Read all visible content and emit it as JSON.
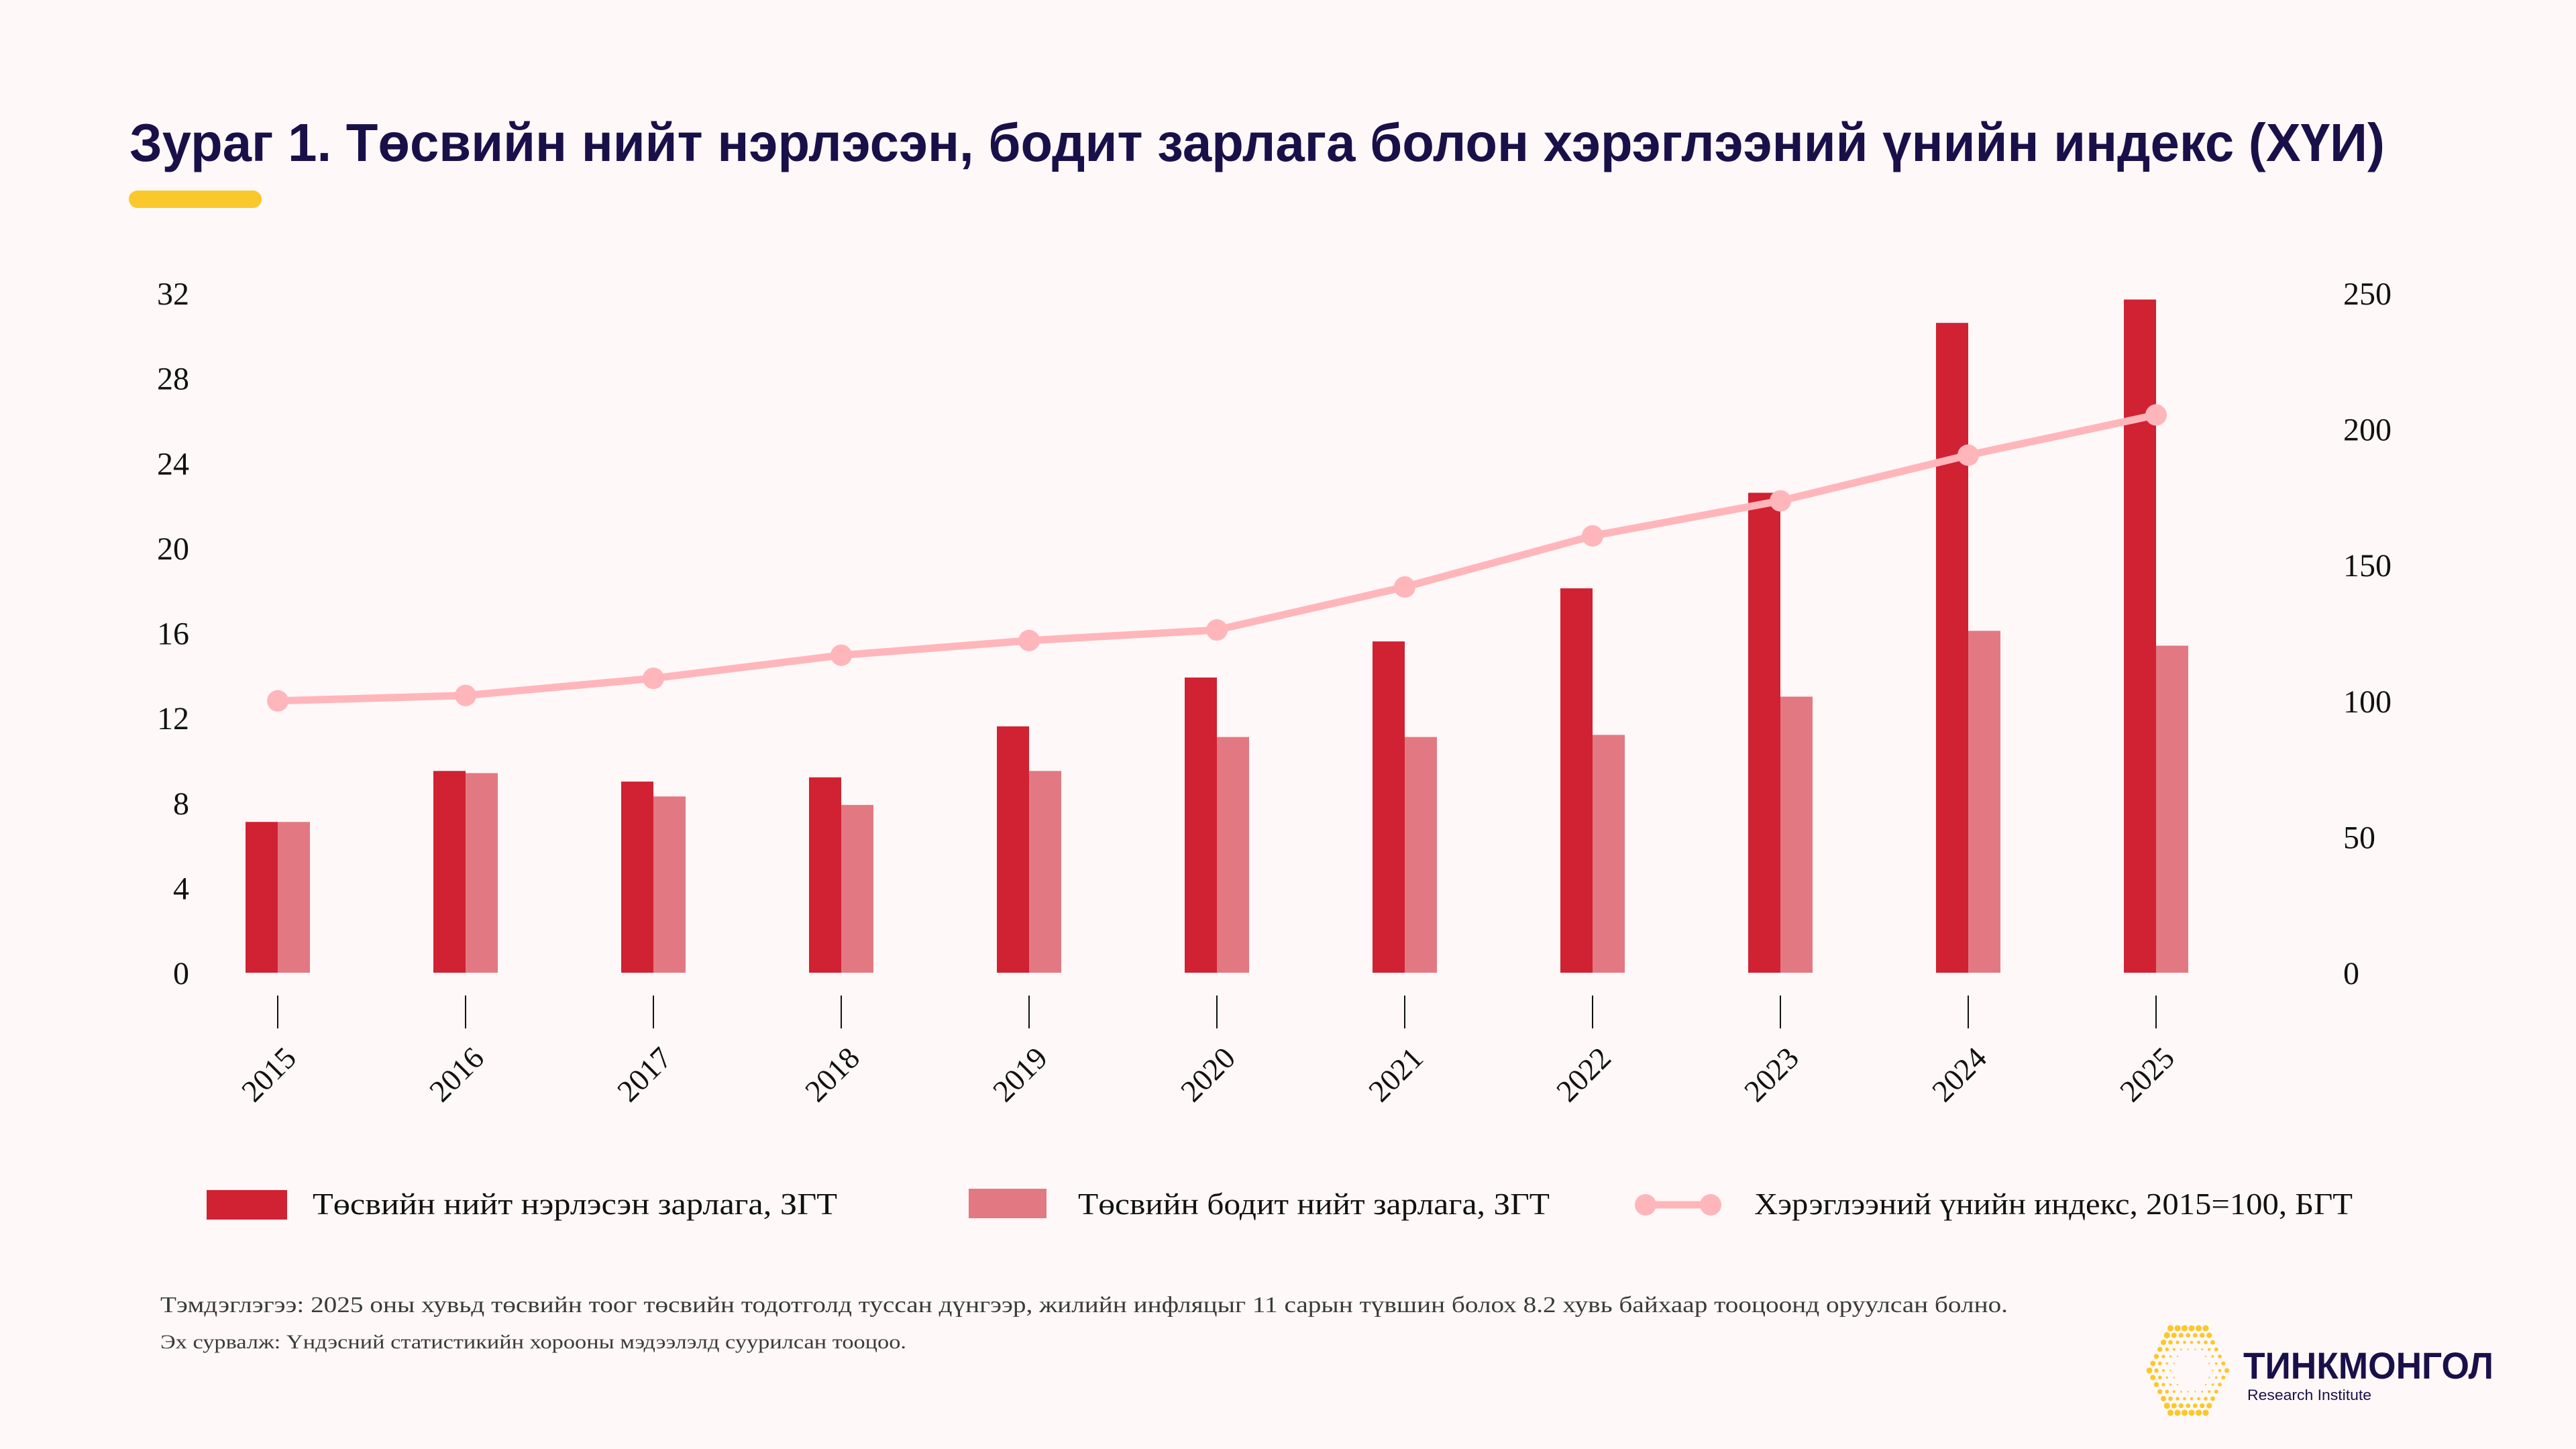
{
  "header": {
    "title": "Зураг 1. Төсвийн нийт нэрлэсэн, бодит зарлага болон хэрэглээний үнийн индекс (ХҮИ)",
    "accent_color": "#FBC82B"
  },
  "chart_data": {
    "type": "bar",
    "title": "Зураг 1. Төсвийн нийт нэрлэсэн, бодит зарлага болон хэрэглээний үнийн индекс (ХҮИ)",
    "xlabel": "",
    "ylabel": "",
    "categories": [
      "2015",
      "2016",
      "2017",
      "2018",
      "2019",
      "2020",
      "2021",
      "2022",
      "2023",
      "2024",
      "2025"
    ],
    "series": [
      {
        "name": "Төсвийн нийт нэрлэсэн зарлага, ЗГТ",
        "type": "bar",
        "axis": "left",
        "color": "#D02232",
        "values": [
          7.1,
          9.5,
          9.0,
          9.2,
          11.6,
          13.9,
          15.6,
          18.1,
          22.6,
          30.6,
          31.7
        ]
      },
      {
        "name": "Төсвийн бодит нийт зарлага, ЗГТ",
        "type": "bar",
        "axis": "left",
        "color": "#E27982",
        "values": [
          7.1,
          9.4,
          8.3,
          7.9,
          9.5,
          11.1,
          11.1,
          11.2,
          13.0,
          16.1,
          15.4
        ]
      },
      {
        "name": "Хэрэглээний үнийн индекс, 2015=100, БГТ",
        "type": "line",
        "axis": "right",
        "color": "#FFB6BB",
        "values": [
          100.0,
          102.0,
          108.3,
          116.8,
          122.2,
          126.1,
          141.9,
          160.7,
          173.6,
          190.4,
          205.2
        ]
      }
    ],
    "y_left": {
      "ylim": [
        0,
        32
      ],
      "ticks": [
        "0",
        "4",
        "8",
        "12",
        "16",
        "20",
        "24",
        "28",
        "32"
      ]
    },
    "y_right": {
      "ylim": [
        0,
        250
      ],
      "ticks": [
        "0",
        "50",
        "100",
        "150",
        "200",
        "250"
      ]
    },
    "grid": false,
    "legend_position": "bottom"
  },
  "footnotes": {
    "note": "Тэмдэглэгээ: 2025 оны хувьд төсвийн тоог төсвийн тодотголд туссан дүнгээр, жилийн инфляцыг 11 сарын түвшин болох 8.2 хувь байхаар тооцоонд оруулсан болно.",
    "source": "Эх сурвалж: Үндэсний статистикийн хорооны мэдээлэлд суурилсан тооцоо."
  },
  "logo": {
    "name": "ТИНКМОНГОЛ",
    "subtitle": "Research Institute",
    "icon": "hexagon-dots-icon",
    "icon_color": "#FBC82B"
  }
}
